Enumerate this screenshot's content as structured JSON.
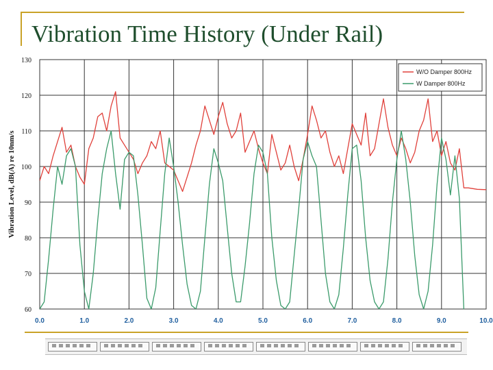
{
  "slide": {
    "title": "Vibration Time History (Under Rail)"
  },
  "chart_data": {
    "type": "line",
    "title": "",
    "xlabel": "",
    "ylabel": "Vibration Level, dB(A) re 10nm/s",
    "xlim": [
      0,
      10
    ],
    "ylim": [
      60,
      130
    ],
    "x_ticks": [
      "0.0",
      "1.0",
      "2.0",
      "3.0",
      "4.0",
      "5.0",
      "6.0",
      "7.0",
      "8.0",
      "9.0",
      "10.0"
    ],
    "y_ticks": [
      "60",
      "70",
      "80",
      "90",
      "100",
      "110",
      "120",
      "130"
    ],
    "grid": true,
    "legend_position": "top-right",
    "series": [
      {
        "name": "W/O Damper 800Hz",
        "color": "#e0403a",
        "x": [
          0.0,
          0.1,
          0.2,
          0.3,
          0.4,
          0.5,
          0.6,
          0.7,
          0.8,
          0.9,
          1.0,
          1.1,
          1.2,
          1.3,
          1.4,
          1.5,
          1.6,
          1.7,
          1.8,
          1.9,
          2.0,
          2.1,
          2.2,
          2.3,
          2.4,
          2.5,
          2.6,
          2.7,
          2.8,
          2.9,
          3.0,
          3.1,
          3.2,
          3.3,
          3.4,
          3.5,
          3.6,
          3.7,
          3.8,
          3.9,
          4.0,
          4.1,
          4.2,
          4.3,
          4.4,
          4.5,
          4.6,
          4.7,
          4.8,
          4.9,
          5.0,
          5.1,
          5.2,
          5.3,
          5.4,
          5.5,
          5.6,
          5.7,
          5.8,
          5.9,
          6.0,
          6.1,
          6.2,
          6.3,
          6.4,
          6.5,
          6.6,
          6.7,
          6.8,
          6.9,
          7.0,
          7.1,
          7.2,
          7.3,
          7.4,
          7.5,
          7.6,
          7.7,
          7.8,
          7.9,
          8.0,
          8.1,
          8.2,
          8.3,
          8.4,
          8.5,
          8.6,
          8.7,
          8.8,
          8.9,
          9.0,
          9.1,
          9.2,
          9.3,
          9.4,
          9.5,
          9.6,
          9.8,
          10.0
        ],
        "values": [
          96,
          100,
          98,
          103,
          107,
          111,
          104,
          106,
          100,
          97,
          95,
          105,
          108,
          114,
          115,
          110,
          117,
          121,
          108,
          106,
          104,
          102,
          98,
          101,
          103,
          107,
          105,
          110,
          101,
          100,
          99,
          96,
          93,
          97,
          101,
          106,
          110,
          117,
          113,
          109,
          114,
          118,
          112,
          108,
          110,
          115,
          104,
          107,
          110,
          105,
          101,
          98,
          109,
          104,
          99,
          101,
          106,
          100,
          96,
          102,
          109,
          117,
          113,
          108,
          110,
          104,
          100,
          103,
          98,
          105,
          112,
          109,
          106,
          115,
          103,
          105,
          112,
          119,
          111,
          106,
          103,
          108,
          105,
          101,
          104,
          110,
          113,
          119,
          107,
          110,
          103,
          107,
          101,
          99,
          105,
          94,
          94,
          93.6,
          93.5
        ]
      },
      {
        "name": "W Damper 800Hz",
        "color": "#3a9a6a",
        "x": [
          0.0,
          0.1,
          0.2,
          0.3,
          0.4,
          0.5,
          0.6,
          0.7,
          0.8,
          0.9,
          1.0,
          1.1,
          1.2,
          1.3,
          1.4,
          1.5,
          1.6,
          1.7,
          1.8,
          1.9,
          2.0,
          2.1,
          2.2,
          2.3,
          2.4,
          2.5,
          2.6,
          2.7,
          2.8,
          2.9,
          3.0,
          3.1,
          3.2,
          3.3,
          3.4,
          3.5,
          3.6,
          3.7,
          3.8,
          3.9,
          4.0,
          4.1,
          4.2,
          4.3,
          4.4,
          4.5,
          4.6,
          4.7,
          4.8,
          4.9,
          5.0,
          5.1,
          5.2,
          5.3,
          5.4,
          5.5,
          5.6,
          5.7,
          5.8,
          5.9,
          6.0,
          6.1,
          6.2,
          6.3,
          6.4,
          6.5,
          6.6,
          6.7,
          6.8,
          6.9,
          7.0,
          7.1,
          7.2,
          7.3,
          7.4,
          7.5,
          7.6,
          7.7,
          7.8,
          7.9,
          8.0,
          8.1,
          8.2,
          8.3,
          8.4,
          8.5,
          8.6,
          8.7,
          8.8,
          8.9,
          9.0,
          9.1,
          9.2,
          9.3,
          9.4,
          9.5
        ],
        "values": [
          60,
          62,
          74,
          88,
          100,
          95,
          103,
          105,
          100,
          78,
          65,
          60,
          70,
          85,
          98,
          105,
          110,
          98,
          88,
          102,
          104,
          103,
          92,
          78,
          63,
          60,
          66,
          82,
          98,
          108,
          100,
          90,
          78,
          67,
          61,
          60,
          65,
          80,
          95,
          105,
          101,
          96,
          83,
          70,
          62,
          62,
          72,
          84,
          98,
          106,
          104,
          98,
          80,
          68,
          61,
          60,
          62,
          75,
          88,
          102,
          107,
          103,
          100,
          85,
          70,
          62,
          60,
          64,
          77,
          92,
          105,
          106,
          96,
          80,
          68,
          62,
          60,
          62,
          74,
          90,
          102,
          110,
          102,
          90,
          75,
          64,
          60,
          65,
          78,
          95,
          108,
          102,
          92,
          103,
          91,
          60
        ]
      }
    ]
  }
}
